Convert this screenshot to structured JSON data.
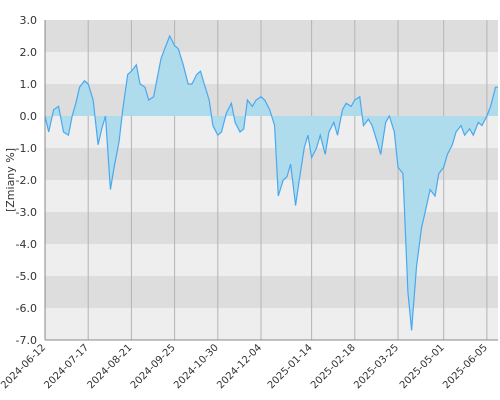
{
  "chart_data": {
    "type": "area",
    "ylabel": "[Zmiany %]",
    "ylim": [
      -7.0,
      3.0
    ],
    "y_ticks": [
      "3.0",
      "2.0",
      "1.0",
      "0.0",
      "-1.0",
      "-2.0",
      "-3.0",
      "-4.0",
      "-5.0",
      "-6.0",
      "-7.0"
    ],
    "x_ticks": [
      "2024-06-12",
      "2024-07-17",
      "2024-08-21",
      "2024-09-25",
      "2024-10-30",
      "2024-12-04",
      "2025-01-14",
      "2025-02-18",
      "2025-03-25",
      "2025-05-01",
      "2025-06-05"
    ],
    "grid": true,
    "colors": {
      "line": "#4aa8ee",
      "fill": "#aedcec",
      "band_dark": "#dddddd",
      "band_light": "#eeeeee"
    },
    "series": [
      {
        "x": [
          "2024-06-12",
          "2024-06-15",
          "2024-06-19",
          "2024-06-23",
          "2024-06-27",
          "2024-07-01",
          "2024-07-04",
          "2024-07-07",
          "2024-07-10",
          "2024-07-14",
          "2024-07-17",
          "2024-07-21",
          "2024-07-25",
          "2024-07-28",
          "2024-07-31",
          "2024-08-04",
          "2024-08-07",
          "2024-08-11",
          "2024-08-14",
          "2024-08-18",
          "2024-08-21",
          "2024-08-25",
          "2024-08-28",
          "2024-09-01",
          "2024-09-04",
          "2024-09-08",
          "2024-09-11",
          "2024-09-14",
          "2024-09-18",
          "2024-09-21",
          "2024-09-25",
          "2024-09-28",
          "2024-10-02",
          "2024-10-06",
          "2024-10-09",
          "2024-10-13",
          "2024-10-16",
          "2024-10-19",
          "2024-10-23",
          "2024-10-26",
          "2024-10-30",
          "2024-11-02",
          "2024-11-06",
          "2024-11-10",
          "2024-11-13",
          "2024-11-17",
          "2024-11-20",
          "2024-11-23",
          "2024-11-27",
          "2024-11-30",
          "2024-12-04",
          "2024-12-07",
          "2024-12-11",
          "2024-12-15",
          "2024-12-18",
          "2024-12-22",
          "2024-12-25",
          "2024-12-28",
          "2025-01-01",
          "2025-01-04",
          "2025-01-08",
          "2025-01-11",
          "2025-01-14",
          "2025-01-18",
          "2025-01-21",
          "2025-01-25",
          "2025-01-28",
          "2025-02-01",
          "2025-02-04",
          "2025-02-08",
          "2025-02-11",
          "2025-02-15",
          "2025-02-18",
          "2025-02-22",
          "2025-02-25",
          "2025-03-01",
          "2025-03-04",
          "2025-03-08",
          "2025-03-11",
          "2025-03-15",
          "2025-03-18",
          "2025-03-22",
          "2025-03-25",
          "2025-03-29",
          "2025-04-02",
          "2025-04-05",
          "2025-04-09",
          "2025-04-13",
          "2025-04-16",
          "2025-04-20",
          "2025-04-24",
          "2025-04-27",
          "2025-05-01",
          "2025-05-04",
          "2025-05-08",
          "2025-05-11",
          "2025-05-15",
          "2025-05-18",
          "2025-05-22",
          "2025-05-25",
          "2025-05-29",
          "2025-06-01",
          "2025-06-05",
          "2025-06-08",
          "2025-06-12",
          "2025-06-14"
        ],
        "values": [
          0.0,
          -0.5,
          0.2,
          0.3,
          -0.5,
          -0.6,
          0.0,
          0.4,
          0.9,
          1.1,
          1.0,
          0.5,
          -0.9,
          -0.4,
          0.0,
          -2.3,
          -1.6,
          -0.8,
          0.2,
          1.3,
          1.4,
          1.6,
          1.0,
          0.9,
          0.5,
          0.6,
          1.2,
          1.8,
          2.2,
          2.5,
          2.2,
          2.1,
          1.6,
          1.0,
          1.0,
          1.3,
          1.4,
          1.0,
          0.5,
          -0.3,
          -0.6,
          -0.5,
          0.1,
          0.4,
          -0.2,
          -0.5,
          -0.4,
          0.5,
          0.3,
          0.5,
          0.6,
          0.5,
          0.2,
          -0.3,
          -2.5,
          -2.0,
          -1.9,
          -1.5,
          -2.8,
          -2.0,
          -1.0,
          -0.6,
          -1.3,
          -1.0,
          -0.6,
          -1.2,
          -0.5,
          -0.2,
          -0.6,
          0.2,
          0.4,
          0.3,
          0.5,
          0.6,
          -0.3,
          -0.1,
          -0.3,
          -0.8,
          -1.2,
          -0.2,
          0.0,
          -0.5,
          -1.6,
          -1.8,
          -5.5,
          -6.7,
          -4.7,
          -3.5,
          -3.0,
          -2.3,
          -2.5,
          -1.8,
          -1.6,
          -1.2,
          -0.9,
          -0.5,
          -0.3,
          -0.6,
          -0.4,
          -0.6,
          -0.2,
          -0.3,
          0.0,
          0.3,
          0.9,
          0.9
        ]
      }
    ]
  }
}
